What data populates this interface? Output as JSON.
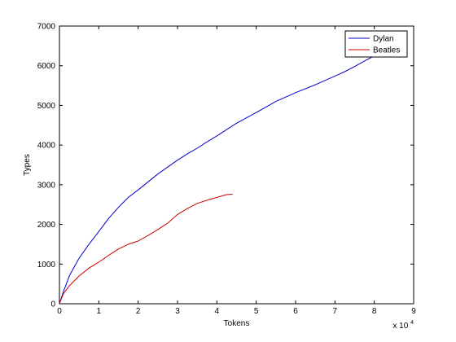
{
  "chart_data": {
    "type": "line",
    "xlabel": "Tokens",
    "ylabel": "Types",
    "x_multiplier_label": "x 10",
    "x_multiplier_exponent": "4",
    "xlim": [
      0,
      9
    ],
    "ylim": [
      0,
      7000
    ],
    "xticks": [
      "0",
      "1",
      "2",
      "3",
      "4",
      "5",
      "6",
      "7",
      "8",
      "9"
    ],
    "yticks": [
      "0",
      "1000",
      "2000",
      "3000",
      "4000",
      "5000",
      "6000",
      "7000"
    ],
    "grid": false,
    "legend_position": "top-right",
    "series": [
      {
        "name": "Dylan",
        "color": "#0000cc",
        "x": [
          0,
          0.1,
          0.25,
          0.5,
          0.75,
          1.0,
          1.25,
          1.5,
          1.75,
          2.0,
          2.5,
          3.0,
          3.25,
          3.5,
          3.75,
          4.0,
          4.5,
          5.0,
          5.5,
          6.0,
          6.5,
          7.0,
          7.25,
          7.5,
          7.75,
          8.0,
          8.2
        ],
        "y": [
          0,
          300,
          700,
          1150,
          1500,
          1820,
          2150,
          2430,
          2680,
          2870,
          3270,
          3620,
          3780,
          3920,
          4080,
          4230,
          4550,
          4820,
          5100,
          5320,
          5520,
          5740,
          5850,
          5980,
          6120,
          6250,
          6300
        ]
      },
      {
        "name": "Beatles",
        "color": "#cc0000",
        "x": [
          0,
          0.1,
          0.25,
          0.5,
          0.75,
          1.0,
          1.25,
          1.5,
          1.75,
          2.0,
          2.25,
          2.5,
          2.75,
          3.0,
          3.25,
          3.5,
          3.75,
          4.0,
          4.25,
          4.4
        ],
        "y": [
          0,
          250,
          450,
          700,
          900,
          1050,
          1220,
          1380,
          1500,
          1580,
          1720,
          1870,
          2030,
          2250,
          2400,
          2530,
          2610,
          2680,
          2750,
          2760
        ]
      }
    ]
  }
}
